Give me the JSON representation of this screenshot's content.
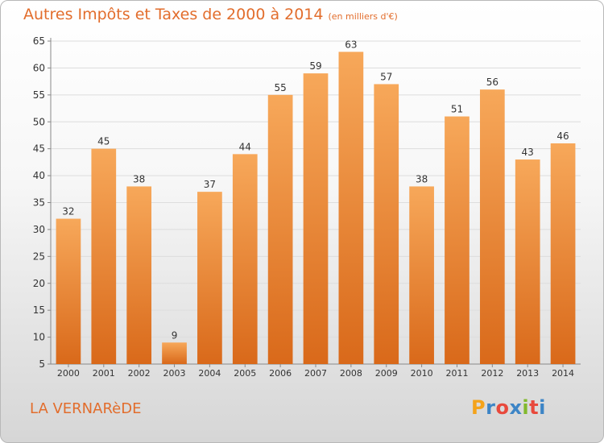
{
  "header": {
    "title": "Autres Impôts et Taxes de 2000 à 2014",
    "subtitle": "(en milliers d'€)"
  },
  "footer": {
    "commune": "LA VERNARèDE",
    "logo_letters": [
      "P",
      "r",
      "o",
      "x",
      "i",
      "t",
      "i"
    ],
    "logo_colors": [
      "#f4a31b",
      "#3d85c6",
      "#e8493c",
      "#3d85c6",
      "#82b92d",
      "#e8493c",
      "#3d85c6"
    ]
  },
  "colors": {
    "bar_light": "#f7a85a",
    "bar_dark": "#d9691a",
    "text": "#333333",
    "grid": "#dddddd",
    "accent": "#e26d2c"
  },
  "chart_data": {
    "type": "bar",
    "categories": [
      "2000",
      "2001",
      "2002",
      "2003",
      "2004",
      "2005",
      "2006",
      "2007",
      "2008",
      "2009",
      "2010",
      "2011",
      "2012",
      "2013",
      "2014"
    ],
    "values": [
      32,
      45,
      38,
      9,
      37,
      44,
      55,
      59,
      63,
      57,
      38,
      51,
      56,
      43,
      46
    ],
    "ylim": [
      5,
      65
    ],
    "yticks": [
      5,
      10,
      15,
      20,
      25,
      30,
      35,
      40,
      45,
      50,
      55,
      60,
      65
    ],
    "grid": true,
    "xlabel": "",
    "ylabel": ""
  }
}
